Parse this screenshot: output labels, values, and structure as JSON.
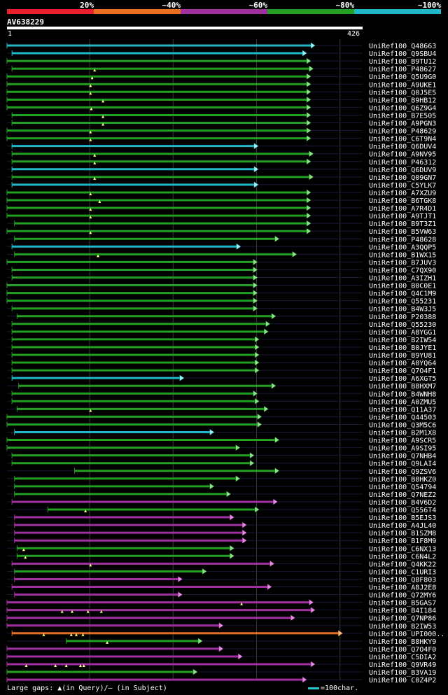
{
  "legend": {
    "labels": [
      "20%",
      "~40%",
      "~60%",
      "~80%",
      "~100%"
    ],
    "colors": [
      "#e8202e",
      "#e87020",
      "#a030a0",
      "#22a022",
      "#20b8c8"
    ]
  },
  "query": {
    "name": "AV638229",
    "start_label": "1",
    "end_label": "426"
  },
  "footer": {
    "gap_text": "Large gaps: ▲(in Query)/– (in Subject)",
    "scale_text": "=100char."
  },
  "chart_data": {
    "type": "alignment",
    "query_length": 426,
    "colors": {
      "red": "#e8202e",
      "orange": "#e87020",
      "purple": "#a030a0",
      "green": "#22a022",
      "cyan": "#20b8c8",
      "arrow_green": "#90e090",
      "arrow_cyan": "#a0f0f0",
      "arrow_purple": "#e090e0",
      "arrow_orange": "#f0c080"
    },
    "hits": [
      {
        "label": "UniRef100_Q48663",
        "start": 1,
        "end": 365,
        "color": "cyan",
        "gaps": []
      },
      {
        "label": "UniRef100_Q9SBU4",
        "start": 7,
        "end": 355,
        "color": "cyan",
        "gaps": []
      },
      {
        "label": "UniRef100_B9TU12",
        "start": 1,
        "end": 360,
        "color": "green",
        "gaps": []
      },
      {
        "label": "UniRef100_P48627",
        "start": 7,
        "end": 363,
        "color": "green",
        "gaps": [
          106
        ]
      },
      {
        "label": "UniRef100_Q5U9G0",
        "start": 1,
        "end": 360,
        "color": "green",
        "gaps": [
          103
        ]
      },
      {
        "label": "UniRef100_A9UKE1",
        "start": 1,
        "end": 360,
        "color": "green",
        "gaps": [
          101
        ]
      },
      {
        "label": "UniRef100_Q0J5E5",
        "start": 1,
        "end": 360,
        "color": "green",
        "gaps": [
          101
        ]
      },
      {
        "label": "UniRef100_B9HB12",
        "start": 1,
        "end": 360,
        "color": "green",
        "gaps": [
          116
        ]
      },
      {
        "label": "UniRef100_Q6Z9G4",
        "start": 1,
        "end": 360,
        "color": "green",
        "gaps": [
          102
        ]
      },
      {
        "label": "UniRef100_B7E505",
        "start": 7,
        "end": 360,
        "color": "green",
        "gaps": [
          116
        ]
      },
      {
        "label": "UniRef100_A9PGN3",
        "start": 7,
        "end": 360,
        "color": "green",
        "gaps": [
          116
        ]
      },
      {
        "label": "UniRef100_P48629",
        "start": 1,
        "end": 360,
        "color": "green",
        "gaps": [
          101
        ]
      },
      {
        "label": "UniRef100_C6T9N4",
        "start": 1,
        "end": 360,
        "color": "green",
        "gaps": [
          101
        ]
      },
      {
        "label": "UniRef100_Q6DUV4",
        "start": 7,
        "end": 297,
        "color": "cyan",
        "gaps": []
      },
      {
        "label": "UniRef100_A9NV95",
        "start": 7,
        "end": 363,
        "color": "green",
        "gaps": [
          106
        ]
      },
      {
        "label": "UniRef100_P46312",
        "start": 7,
        "end": 360,
        "color": "green",
        "gaps": [
          106
        ]
      },
      {
        "label": "UniRef100_Q6DUV9",
        "start": 7,
        "end": 297,
        "color": "cyan",
        "gaps": []
      },
      {
        "label": "UniRef100_Q09GN7",
        "start": 7,
        "end": 363,
        "color": "green",
        "gaps": [
          106
        ]
      },
      {
        "label": "UniRef100_C5YLK7",
        "start": 7,
        "end": 297,
        "color": "cyan",
        "gaps": []
      },
      {
        "label": "UniRef100_A7XZU9",
        "start": 1,
        "end": 360,
        "color": "green",
        "gaps": [
          101
        ]
      },
      {
        "label": "UniRef100_B6TGK8",
        "start": 1,
        "end": 360,
        "color": "green",
        "gaps": [
          112
        ]
      },
      {
        "label": "UniRef100_A7R4D1",
        "start": 1,
        "end": 360,
        "color": "green",
        "gaps": [
          101
        ]
      },
      {
        "label": "UniRef100_A9TJT1",
        "start": 1,
        "end": 360,
        "color": "green",
        "gaps": [
          101
        ]
      },
      {
        "label": "UniRef100_B9T3Z1",
        "start": 10,
        "end": 360,
        "color": "green",
        "gaps": []
      },
      {
        "label": "UniRef100_B5VW63",
        "start": 1,
        "end": 360,
        "color": "green",
        "gaps": [
          101
        ]
      },
      {
        "label": "UniRef100_P48628",
        "start": 10,
        "end": 322,
        "color": "green",
        "gaps": []
      },
      {
        "label": "UniRef100_A3QQP5",
        "start": 7,
        "end": 276,
        "color": "cyan",
        "gaps": []
      },
      {
        "label": "UniRef100_B1WX15",
        "start": 10,
        "end": 343,
        "color": "green",
        "gaps": [
          110
        ]
      },
      {
        "label": "UniRef100_B7JUV3",
        "start": 1,
        "end": 296,
        "color": "green",
        "gaps": []
      },
      {
        "label": "UniRef100_C7QX90",
        "start": 7,
        "end": 296,
        "color": "green",
        "gaps": []
      },
      {
        "label": "UniRef100_A3IZH1",
        "start": 7,
        "end": 296,
        "color": "green",
        "gaps": []
      },
      {
        "label": "UniRef100_B0C0E1",
        "start": 1,
        "end": 296,
        "color": "green",
        "gaps": []
      },
      {
        "label": "UniRef100_Q4C1M9",
        "start": 1,
        "end": 296,
        "color": "green",
        "gaps": []
      },
      {
        "label": "UniRef100_Q55231",
        "start": 1,
        "end": 296,
        "color": "green",
        "gaps": []
      },
      {
        "label": "UniRef100_B4W3J5",
        "start": 7,
        "end": 296,
        "color": "green",
        "gaps": []
      },
      {
        "label": "UniRef100_P20388",
        "start": 13,
        "end": 318,
        "color": "green",
        "gaps": []
      },
      {
        "label": "UniRef100_Q55230",
        "start": 7,
        "end": 311,
        "color": "green",
        "gaps": []
      },
      {
        "label": "UniRef100_A8YGG1",
        "start": 7,
        "end": 309,
        "color": "green",
        "gaps": []
      },
      {
        "label": "UniRef100_B2IW54",
        "start": 7,
        "end": 298,
        "color": "green",
        "gaps": []
      },
      {
        "label": "UniRef100_B0JYE1",
        "start": 7,
        "end": 298,
        "color": "green",
        "gaps": []
      },
      {
        "label": "UniRef100_B9YU81",
        "start": 7,
        "end": 298,
        "color": "green",
        "gaps": []
      },
      {
        "label": "UniRef100_A0YQ64",
        "start": 7,
        "end": 298,
        "color": "green",
        "gaps": []
      },
      {
        "label": "UniRef100_Q7O4F1",
        "start": 7,
        "end": 298,
        "color": "green",
        "gaps": []
      },
      {
        "label": "UniRef100_A6XGT5",
        "start": 7,
        "end": 208,
        "color": "cyan",
        "gaps": []
      },
      {
        "label": "UniRef100_B8HXM7",
        "start": 15,
        "end": 318,
        "color": "green",
        "gaps": []
      },
      {
        "label": "UniRef100_B4WNH8",
        "start": 7,
        "end": 296,
        "color": "green",
        "gaps": []
      },
      {
        "label": "UniRef100_A0ZMU5",
        "start": 7,
        "end": 298,
        "color": "green",
        "gaps": []
      },
      {
        "label": "UniRef100_Q11A37",
        "start": 13,
        "end": 309,
        "color": "green",
        "gaps": [
          101
        ]
      },
      {
        "label": "UniRef100_Q44503",
        "start": 1,
        "end": 301,
        "color": "green",
        "gaps": []
      },
      {
        "label": "UniRef100_Q3M5C6",
        "start": 1,
        "end": 301,
        "color": "green",
        "gaps": []
      },
      {
        "label": "UniRef100_B2M1X8",
        "start": 10,
        "end": 244,
        "color": "cyan",
        "gaps": []
      },
      {
        "label": "UniRef100_A9SCR5",
        "start": 1,
        "end": 322,
        "color": "green",
        "gaps": []
      },
      {
        "label": "UniRef100_A9SI95",
        "start": 1,
        "end": 275,
        "color": "green",
        "gaps": []
      },
      {
        "label": "UniRef100_Q7NHB4",
        "start": 7,
        "end": 292,
        "color": "green",
        "gaps": []
      },
      {
        "label": "UniRef100_Q9LAI4",
        "start": 7,
        "end": 292,
        "color": "green",
        "gaps": []
      },
      {
        "label": "UniRef100_Q9ZSV6",
        "start": 82,
        "end": 322,
        "color": "green",
        "gaps": []
      },
      {
        "label": "UniRef100_B8HKZ0",
        "start": 10,
        "end": 275,
        "color": "green",
        "gaps": []
      },
      {
        "label": "UniRef100_Q54794",
        "start": 10,
        "end": 244,
        "color": "green",
        "gaps": []
      },
      {
        "label": "UniRef100_Q7NEZ2",
        "start": 10,
        "end": 264,
        "color": "green",
        "gaps": []
      },
      {
        "label": "UniRef100_B4V6D2",
        "start": 7,
        "end": 320,
        "color": "purple",
        "gaps": []
      },
      {
        "label": "UniRef100_Q556T4",
        "start": 50,
        "end": 298,
        "color": "green",
        "gaps": [
          95
        ]
      },
      {
        "label": "UniRef100_B5EJS3",
        "start": 10,
        "end": 268,
        "color": "purple",
        "gaps": []
      },
      {
        "label": "UniRef100_A4JL40",
        "start": 10,
        "end": 283,
        "color": "purple",
        "gaps": []
      },
      {
        "label": "UniRef100_B1SZM8",
        "start": 10,
        "end": 283,
        "color": "purple",
        "gaps": []
      },
      {
        "label": "UniRef100_B1F8M9",
        "start": 10,
        "end": 283,
        "color": "purple",
        "gaps": []
      },
      {
        "label": "UniRef100_C6NX13",
        "start": 13,
        "end": 268,
        "color": "green",
        "gaps": [
          21
        ]
      },
      {
        "label": "UniRef100_C6N4L2",
        "start": 13,
        "end": 268,
        "color": "green",
        "gaps": [
          23
        ]
      },
      {
        "label": "UniRef100_Q4KK22",
        "start": 7,
        "end": 316,
        "color": "purple",
        "gaps": [
          101
        ]
      },
      {
        "label": "UniRef100_C1URI3",
        "start": 10,
        "end": 235,
        "color": "green",
        "gaps": []
      },
      {
        "label": "UniRef100_Q8F803",
        "start": 10,
        "end": 206,
        "color": "purple",
        "gaps": []
      },
      {
        "label": "UniRef100_A8J2E8",
        "start": 7,
        "end": 313,
        "color": "purple",
        "gaps": []
      },
      {
        "label": "UniRef100_Q72MY6",
        "start": 10,
        "end": 206,
        "color": "purple",
        "gaps": []
      },
      {
        "label": "UniRef100_B5GAS7",
        "start": 1,
        "end": 363,
        "color": "purple",
        "gaps": [
          282
        ]
      },
      {
        "label": "UniRef100_B4I184",
        "start": 1,
        "end": 365,
        "color": "purple",
        "gaps": [
          67,
          79,
          98,
          114
        ]
      },
      {
        "label": "UniRef100_Q7NP86",
        "start": 1,
        "end": 341,
        "color": "purple",
        "gaps": []
      },
      {
        "label": "UniRef100_B2IW53",
        "start": 1,
        "end": 255,
        "color": "purple",
        "gaps": []
      },
      {
        "label": "UniRef100_UPI000..",
        "start": 7,
        "end": 398,
        "color": "orange",
        "gaps": [
          45,
          78,
          84,
          92
        ]
      },
      {
        "label": "UniRef100_B8HKY9",
        "start": 72,
        "end": 230,
        "color": "green",
        "gaps": [
          121
        ]
      },
      {
        "label": "UniRef100_Q7O4F0",
        "start": 1,
        "end": 255,
        "color": "purple",
        "gaps": []
      },
      {
        "label": "UniRef100_C5DIA2",
        "start": 1,
        "end": 278,
        "color": "purple",
        "gaps": []
      },
      {
        "label": "UniRef100_Q9VR49",
        "start": 1,
        "end": 365,
        "color": "purple",
        "gaps": [
          24,
          59,
          72,
          89,
          93
        ]
      },
      {
        "label": "UniRef100_B3VA19",
        "start": 1,
        "end": 224,
        "color": "green",
        "gaps": []
      },
      {
        "label": "UniRef100_C0Z4P2",
        "start": 1,
        "end": 355,
        "color": "purple",
        "gaps": []
      }
    ]
  }
}
